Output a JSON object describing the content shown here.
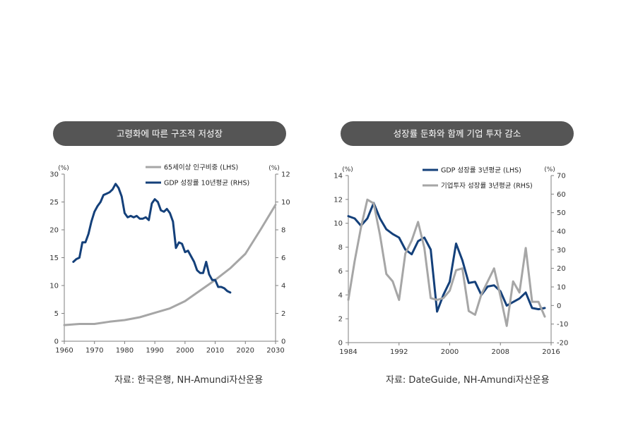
{
  "colors": {
    "navy": "#14407a",
    "gray": "#a6a6a6",
    "pill": "#555555",
    "axis": "#7f7f7f"
  },
  "chart_data": [
    {
      "type": "line",
      "title": "고령화에 따른 구조적 저성장",
      "source": "자료: 한국은행, NH-Amundi자산운용",
      "left_unit": "(%)",
      "right_unit": "(%)",
      "xlim": [
        1960,
        2030
      ],
      "ylim_left": [
        0,
        30
      ],
      "ylim_right": [
        0,
        12
      ],
      "x_ticks": [
        1960,
        1970,
        1980,
        1990,
        2000,
        2010,
        2020,
        2030
      ],
      "y_ticks_left": [
        0,
        5,
        10,
        15,
        20,
        25,
        30
      ],
      "y_ticks_right": [
        0,
        2,
        4,
        6,
        8,
        10,
        12
      ],
      "legend_position": "top-right",
      "series": [
        {
          "name": "65세이상 인구비중 (LHS)",
          "axis": "left",
          "color": "#a6a6a6",
          "x": [
            1960,
            1965,
            1970,
            1975,
            1980,
            1985,
            1990,
            1995,
            2000,
            2005,
            2010,
            2015,
            2020,
            2025,
            2030
          ],
          "values": [
            2.9,
            3.1,
            3.1,
            3.5,
            3.8,
            4.3,
            5.1,
            5.9,
            7.2,
            9.1,
            11.0,
            13.1,
            15.7,
            20.0,
            24.5
          ]
        },
        {
          "name": "GDP 성장률 10년평균 (RHS)",
          "axis": "right",
          "color": "#14407a",
          "x": [
            1963,
            1964,
            1965,
            1966,
            1967,
            1968,
            1969,
            1970,
            1971,
            1972,
            1973,
            1974,
            1975,
            1976,
            1977,
            1978,
            1979,
            1980,
            1981,
            1982,
            1983,
            1984,
            1985,
            1986,
            1987,
            1988,
            1989,
            1990,
            1991,
            1992,
            1993,
            1994,
            1995,
            1996,
            1997,
            1998,
            1999,
            2000,
            2001,
            2002,
            2003,
            2004,
            2005,
            2006,
            2007,
            2008,
            2009,
            2010,
            2011,
            2012,
            2013,
            2014,
            2015
          ],
          "values": [
            5.7,
            5.9,
            6.0,
            7.1,
            7.1,
            7.7,
            8.6,
            9.3,
            9.7,
            10.0,
            10.5,
            10.6,
            10.7,
            10.9,
            11.3,
            11.0,
            10.4,
            9.2,
            8.9,
            9.0,
            8.9,
            9.0,
            8.8,
            8.8,
            8.9,
            8.7,
            9.9,
            10.2,
            10.0,
            9.4,
            9.3,
            9.5,
            9.2,
            8.6,
            6.7,
            7.1,
            7.0,
            6.4,
            6.5,
            6.1,
            5.7,
            5.1,
            4.9,
            4.9,
            5.7,
            4.8,
            4.4,
            4.4,
            3.9,
            3.9,
            3.8,
            3.6,
            3.5
          ]
        }
      ]
    },
    {
      "type": "line",
      "title": "성장률 둔화와 함께 기업 투자 감소",
      "source": "자료: DateGuide, NH-Amundi자산운용",
      "left_unit": "(%)",
      "right_unit": "(%)",
      "xlim": [
        1984,
        2016
      ],
      "ylim_left": [
        0,
        14
      ],
      "ylim_right": [
        -20,
        70
      ],
      "x_ticks": [
        1984,
        1992,
        2000,
        2008,
        2016
      ],
      "y_ticks_left": [
        0,
        2,
        4,
        6,
        8,
        10,
        12,
        14
      ],
      "y_ticks_right": [
        -20,
        -10,
        0,
        10,
        20,
        30,
        40,
        50,
        60,
        70
      ],
      "legend_position": "top-right",
      "series": [
        {
          "name": "GDP 성장률 3년평균 (LHS)",
          "axis": "left",
          "color": "#14407a",
          "x": [
            1984,
            1985,
            1986,
            1987,
            1988,
            1989,
            1990,
            1991,
            1992,
            1993,
            1994,
            1995,
            1996,
            1997,
            1998,
            1999,
            2000,
            2001,
            2002,
            2003,
            2004,
            2005,
            2006,
            2007,
            2008,
            2009,
            2010,
            2011,
            2012,
            2013,
            2014,
            2015
          ],
          "values": [
            10.6,
            10.4,
            9.8,
            10.4,
            11.7,
            10.4,
            9.5,
            9.1,
            8.8,
            7.8,
            7.4,
            8.5,
            8.8,
            7.8,
            2.6,
            4.0,
            5.1,
            8.3,
            6.9,
            5.0,
            5.1,
            4.0,
            4.7,
            4.8,
            4.3,
            3.1,
            3.4,
            3.7,
            4.2,
            2.9,
            2.8,
            2.9
          ]
        },
        {
          "name": "기업투자 성장률 3년평균 (RHS)",
          "axis": "right",
          "color": "#a6a6a6",
          "x": [
            1984,
            1985,
            1986,
            1987,
            1988,
            1989,
            1990,
            1991,
            1992,
            1993,
            1994,
            1995,
            1996,
            1997,
            1998,
            1999,
            2000,
            2001,
            2002,
            2003,
            2004,
            2005,
            2006,
            2007,
            2008,
            2009,
            2010,
            2011,
            2012,
            2013,
            2014,
            2015
          ],
          "values": [
            3,
            24,
            42,
            57,
            55,
            38,
            17,
            13,
            3,
            28,
            35,
            45,
            31,
            4,
            3,
            4,
            8,
            19,
            20,
            -3,
            -5,
            6,
            13,
            20,
            5,
            -11,
            13,
            7,
            31,
            2,
            2,
            -6
          ]
        }
      ]
    }
  ]
}
